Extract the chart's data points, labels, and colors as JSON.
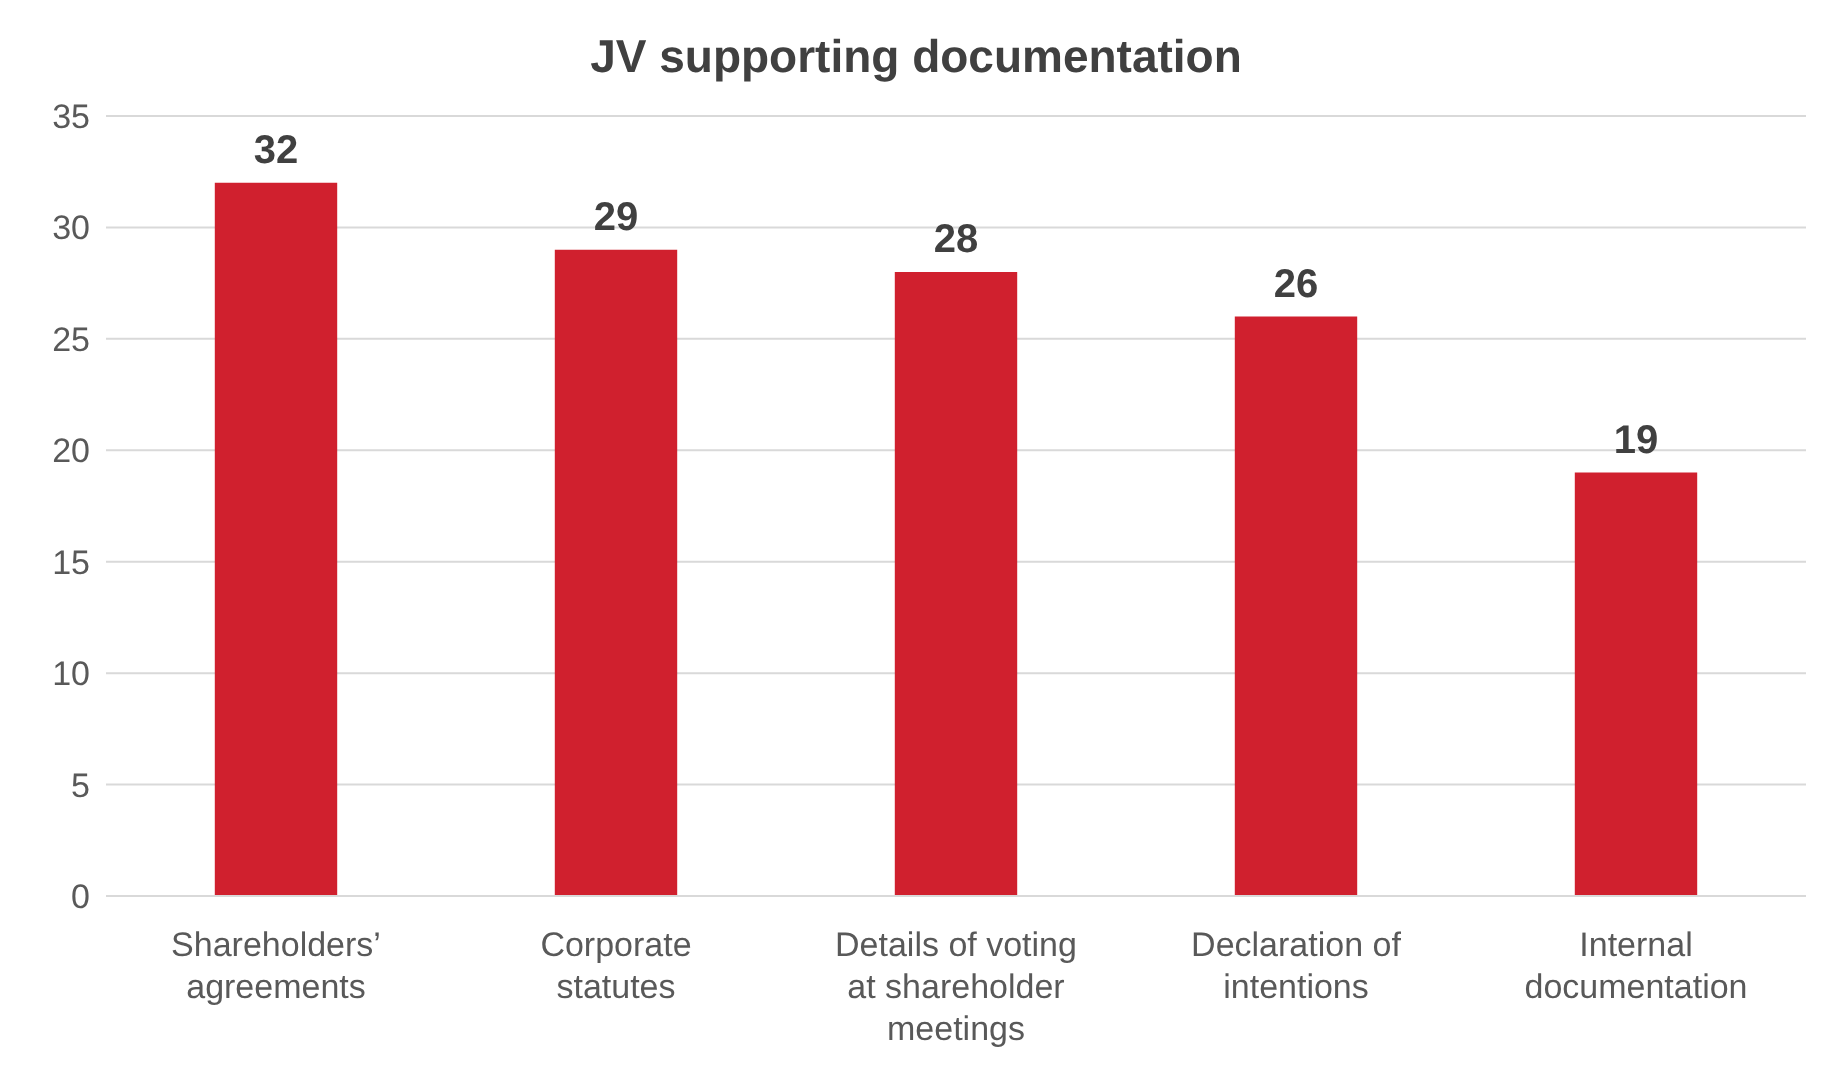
{
  "chart_data": {
    "type": "bar",
    "title": "JV supporting documentation",
    "categories": [
      "Shareholders’ agreements",
      "Corporate statutes",
      "Details of voting at shareholder meetings",
      "Declaration of intentions",
      "Internal documentation"
    ],
    "values": [
      32,
      29,
      28,
      26,
      19
    ],
    "color": "#d0202e",
    "ylim": [
      0,
      35
    ],
    "yticks": [
      0,
      5,
      10,
      15,
      20,
      25,
      30,
      35
    ],
    "grid": "y",
    "data_labels": true
  }
}
